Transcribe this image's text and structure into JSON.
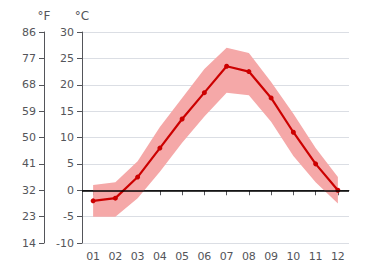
{
  "chart_data": {
    "type": "line",
    "x": [
      1,
      2,
      3,
      4,
      5,
      6,
      7,
      8,
      9,
      10,
      11,
      12
    ],
    "xlim": [
      0.5,
      12.5
    ],
    "xticks": [
      {
        "value": 1,
        "label": "01"
      },
      {
        "value": 2,
        "label": "02"
      },
      {
        "value": 3,
        "label": "03"
      },
      {
        "value": 4,
        "label": "04"
      },
      {
        "value": 5,
        "label": "05"
      },
      {
        "value": 6,
        "label": "06"
      },
      {
        "value": 7,
        "label": "07"
      },
      {
        "value": 8,
        "label": "08"
      },
      {
        "value": 9,
        "label": "09"
      },
      {
        "value": 10,
        "label": "10"
      },
      {
        "value": 11,
        "label": "11"
      },
      {
        "value": 12,
        "label": "12"
      }
    ],
    "ylabel": "°C",
    "ylim": [
      -10,
      30
    ],
    "yticks": [
      -10,
      -5,
      0,
      5,
      10,
      15,
      20,
      25,
      30
    ],
    "y2label": "°F",
    "y2lim": [
      14,
      86
    ],
    "y2ticks": [
      14,
      23,
      32,
      41,
      50,
      59,
      68,
      77,
      86
    ],
    "grid": true,
    "series": [
      {
        "type": "band",
        "color": "#f5a8a8",
        "lower": [
          -5.0,
          -5.0,
          -1.5,
          3.5,
          9.0,
          14.0,
          18.5,
          18.0,
          13.0,
          6.5,
          1.5,
          -2.5
        ],
        "upper": [
          1.0,
          1.5,
          5.5,
          12.0,
          17.5,
          23.0,
          27.0,
          26.0,
          20.5,
          14.5,
          8.0,
          2.5
        ]
      },
      {
        "type": "line",
        "color": "#cc0000",
        "marker": "circle",
        "values": [
          -2.0,
          -1.5,
          2.5,
          8.0,
          13.5,
          18.5,
          23.5,
          22.5,
          17.5,
          11.0,
          5.0,
          0.0
        ]
      }
    ],
    "reference_lines": [
      {
        "y": 0,
        "color": "#000000"
      }
    ]
  }
}
